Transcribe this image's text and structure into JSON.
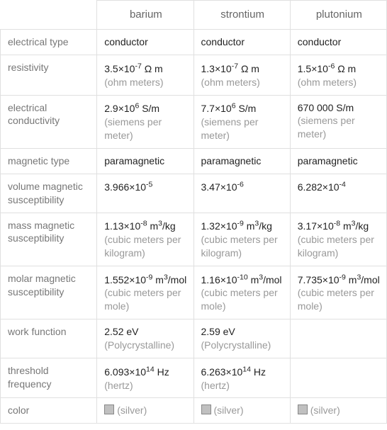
{
  "table": {
    "type": "table",
    "background_color": "#ffffff",
    "grid_color": "#e0e0e0",
    "header_text_color": "#666666",
    "row_label_color": "#777777",
    "value_text_color": "#222222",
    "unit_text_color": "#999999",
    "swatch_color": "#c0c0c0",
    "font_size_pt": 11,
    "header_font_size_pt": 11,
    "columns": [
      "barium",
      "strontium",
      "plutonium"
    ],
    "rows": [
      {
        "label": "electrical type",
        "cells": [
          {
            "value": "conductor",
            "unit": ""
          },
          {
            "value": "conductor",
            "unit": ""
          },
          {
            "value": "conductor",
            "unit": ""
          }
        ]
      },
      {
        "label": "resistivity",
        "cells": [
          {
            "value": "3.5×10⁻⁷ Ω m",
            "unit": "(ohm meters)"
          },
          {
            "value": "1.3×10⁻⁷ Ω m",
            "unit": "(ohm meters)"
          },
          {
            "value": "1.5×10⁻⁶ Ω m",
            "unit": "(ohm meters)"
          }
        ]
      },
      {
        "label": "electrical conductivity",
        "cells": [
          {
            "value": "2.9×10⁶ S/m",
            "unit": "(siemens per meter)"
          },
          {
            "value": "7.7×10⁶ S/m",
            "unit": "(siemens per meter)"
          },
          {
            "value": "670 000 S/m",
            "unit": "(siemens per meter)"
          }
        ]
      },
      {
        "label": "magnetic type",
        "cells": [
          {
            "value": "paramagnetic",
            "unit": ""
          },
          {
            "value": "paramagnetic",
            "unit": ""
          },
          {
            "value": "paramagnetic",
            "unit": ""
          }
        ]
      },
      {
        "label": "volume magnetic susceptibility",
        "cells": [
          {
            "value": "3.966×10⁻⁵",
            "unit": ""
          },
          {
            "value": "3.47×10⁻⁶",
            "unit": ""
          },
          {
            "value": "6.282×10⁻⁴",
            "unit": ""
          }
        ]
      },
      {
        "label": "mass magnetic susceptibility",
        "cells": [
          {
            "value": "1.13×10⁻⁸ m³/kg",
            "unit": "(cubic meters per kilogram)"
          },
          {
            "value": "1.32×10⁻⁹ m³/kg",
            "unit": "(cubic meters per kilogram)"
          },
          {
            "value": "3.17×10⁻⁸ m³/kg",
            "unit": "(cubic meters per kilogram)"
          }
        ]
      },
      {
        "label": "molar magnetic susceptibility",
        "cells": [
          {
            "value": "1.552×10⁻⁹ m³/mol",
            "unit": "(cubic meters per mole)"
          },
          {
            "value": "1.16×10⁻¹⁰ m³/mol",
            "unit": "(cubic meters per mole)"
          },
          {
            "value": "7.735×10⁻⁹ m³/mol",
            "unit": "(cubic meters per mole)"
          }
        ]
      },
      {
        "label": "work function",
        "cells": [
          {
            "value": "2.52 eV",
            "unit": "(Polycrystalline)"
          },
          {
            "value": "2.59 eV",
            "unit": "(Polycrystalline)"
          },
          {
            "value": "",
            "unit": ""
          }
        ]
      },
      {
        "label": "threshold frequency",
        "cells": [
          {
            "value": "6.093×10¹⁴ Hz",
            "unit": "(hertz)"
          },
          {
            "value": "6.263×10¹⁴ Hz",
            "unit": "(hertz)"
          },
          {
            "value": "",
            "unit": ""
          }
        ]
      },
      {
        "label": "color",
        "cells": [
          {
            "value": "(silver)",
            "unit": "",
            "swatch": true
          },
          {
            "value": "(silver)",
            "unit": "",
            "swatch": true
          },
          {
            "value": "(silver)",
            "unit": "",
            "swatch": true
          }
        ]
      }
    ]
  }
}
